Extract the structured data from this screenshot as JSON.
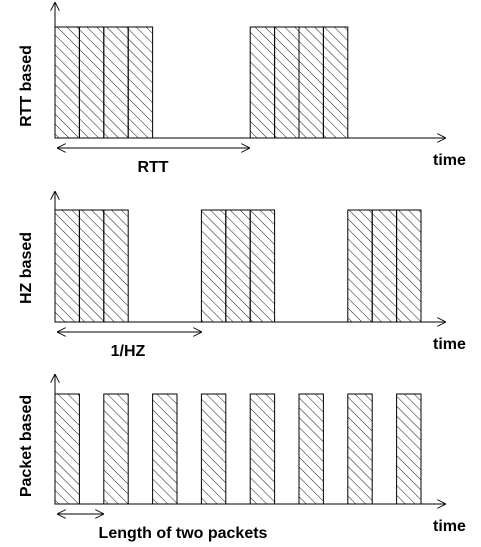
{
  "panels": [
    {
      "ylabel": "RTT based",
      "xlabel": "time",
      "interval_label": "RTT",
      "burst_groups": [
        [
          0,
          1,
          2,
          3
        ],
        [
          8,
          9,
          10,
          11
        ]
      ]
    },
    {
      "ylabel": "HZ based",
      "xlabel": "time",
      "interval_label": "1/HZ",
      "burst_groups": [
        [
          0,
          1,
          2
        ],
        [
          6,
          7,
          8
        ],
        [
          12,
          13,
          14
        ]
      ]
    },
    {
      "ylabel": "Packet based",
      "xlabel": "time",
      "interval_label": "Length of two packets",
      "burst_groups": [
        [
          0
        ],
        [
          2
        ],
        [
          4
        ],
        [
          6
        ],
        [
          8
        ],
        [
          10
        ],
        [
          12
        ],
        [
          14
        ]
      ]
    }
  ],
  "colors": {
    "stroke": "#000000",
    "background": "#ffffff"
  }
}
